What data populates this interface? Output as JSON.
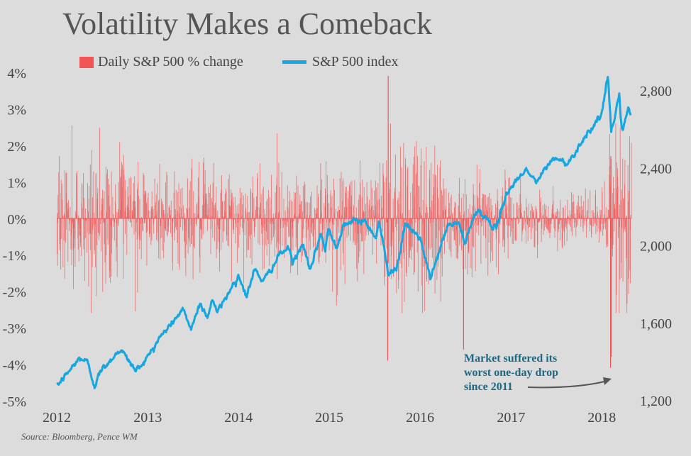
{
  "chart_data": {
    "type": "bar+line",
    "title": "Volatility Makes a Comeback",
    "legend": {
      "placement": "top",
      "items": [
        {
          "label": "Daily S&P 500 % change",
          "marker": "bar",
          "color": "#f25555"
        },
        {
          "label": "S&P 500 index",
          "marker": "line",
          "color": "#16a7e0"
        }
      ]
    },
    "x_axis": {
      "range": [
        "2012-01-01",
        "2018-04-30"
      ],
      "tick_labels": [
        "2012",
        "2013",
        "2014",
        "2015",
        "2016",
        "2017",
        "2018"
      ]
    },
    "y_axis_left": {
      "range": [
        -5,
        4
      ],
      "unit": "%",
      "tick_labels": [
        "4%",
        "3%",
        "2%",
        "1%",
        "0%",
        "-1%",
        "-2%",
        "-3%",
        "-4%",
        "-5%"
      ]
    },
    "y_axis_right": {
      "range": [
        1200,
        2900
      ],
      "tick_labels": [
        "2,800",
        "2,400",
        "2,000",
        "1,600",
        "1,200"
      ]
    },
    "grid": false,
    "series": [
      {
        "name": "S&P 500 index",
        "type": "line",
        "axis": "right",
        "color": "#16a7e0",
        "points": [
          [
            "2012-01-03",
            1277
          ],
          [
            "2012-02-15",
            1345
          ],
          [
            "2012-04-02",
            1419
          ],
          [
            "2012-05-01",
            1405
          ],
          [
            "2012-06-01",
            1278
          ],
          [
            "2012-06-30",
            1362
          ],
          [
            "2012-09-14",
            1466
          ],
          [
            "2012-11-15",
            1353
          ],
          [
            "2012-12-31",
            1426
          ],
          [
            "2013-02-15",
            1520
          ],
          [
            "2013-05-21",
            1669
          ],
          [
            "2013-06-24",
            1573
          ],
          [
            "2013-08-01",
            1706
          ],
          [
            "2013-08-28",
            1630
          ],
          [
            "2013-09-18",
            1725
          ],
          [
            "2013-10-08",
            1655
          ],
          [
            "2013-12-31",
            1848
          ],
          [
            "2014-02-03",
            1741
          ],
          [
            "2014-03-07",
            1878
          ],
          [
            "2014-04-11",
            1815
          ],
          [
            "2014-06-20",
            1962
          ],
          [
            "2014-07-24",
            1988
          ],
          [
            "2014-08-07",
            1909
          ],
          [
            "2014-09-18",
            2011
          ],
          [
            "2014-10-15",
            1862
          ],
          [
            "2014-11-28",
            2067
          ],
          [
            "2014-12-16",
            1972
          ],
          [
            "2014-12-29",
            2090
          ],
          [
            "2015-01-30",
            1995
          ],
          [
            "2015-03-02",
            2117
          ],
          [
            "2015-05-21",
            2130
          ],
          [
            "2015-07-08",
            2046
          ],
          [
            "2015-07-20",
            2128
          ],
          [
            "2015-08-25",
            1867
          ],
          [
            "2015-09-28",
            1881
          ],
          [
            "2015-11-03",
            2109
          ],
          [
            "2015-12-31",
            2044
          ],
          [
            "2016-02-11",
            1829
          ],
          [
            "2016-04-20",
            2102
          ],
          [
            "2016-06-08",
            2119
          ],
          [
            "2016-06-27",
            2000
          ],
          [
            "2016-08-15",
            2190
          ],
          [
            "2016-11-04",
            2085
          ],
          [
            "2016-12-13",
            2271
          ],
          [
            "2017-03-01",
            2396
          ],
          [
            "2017-04-13",
            2328
          ],
          [
            "2017-06-19",
            2453
          ],
          [
            "2017-08-18",
            2425
          ],
          [
            "2017-10-31",
            2575
          ],
          [
            "2017-12-31",
            2674
          ],
          [
            "2018-01-26",
            2873
          ],
          [
            "2018-02-08",
            2581
          ],
          [
            "2018-03-12",
            2783
          ],
          [
            "2018-03-23",
            2588
          ],
          [
            "2018-04-18",
            2708
          ],
          [
            "2018-04-27",
            2670
          ]
        ]
      },
      {
        "name": "Daily S&P 500 % change",
        "type": "bar",
        "axis": "left",
        "color": "#f25555",
        "notable_points": [
          [
            "2015-08-24",
            -3.9
          ],
          [
            "2015-08-26",
            3.9
          ],
          [
            "2016-06-24",
            -3.6
          ],
          [
            "2018-02-05",
            -4.1
          ],
          [
            "2018-02-08",
            -3.8
          ],
          [
            "2018-02-06",
            1.7
          ]
        ],
        "regimes": [
          [
            "2012-01-01",
            "2012-12-31",
            1.0
          ],
          [
            "2013-01-01",
            "2013-12-31",
            0.8
          ],
          [
            "2014-01-01",
            "2014-12-31",
            0.8
          ],
          [
            "2015-01-01",
            "2015-07-31",
            0.9
          ],
          [
            "2015-08-01",
            "2015-12-31",
            1.5
          ],
          [
            "2016-01-01",
            "2016-03-31",
            1.4
          ],
          [
            "2016-04-01",
            "2016-12-31",
            0.8
          ],
          [
            "2017-01-01",
            "2017-12-31",
            0.4
          ],
          [
            "2018-01-01",
            "2018-01-31",
            0.6
          ],
          [
            "2018-02-01",
            "2018-04-30",
            1.6
          ]
        ]
      }
    ],
    "annotations": [
      {
        "text": "Market suffered its worst one-day drop since 2011",
        "lines": [
          "Market suffered its",
          "worst one-day drop",
          "since 2011"
        ],
        "color": "#1b6a85",
        "points_to": "2018-02-05"
      }
    ],
    "source": "Source: Bloomberg, Pence WM"
  },
  "colors": {
    "background": "#dcdcdc",
    "bars": "#f25555",
    "line": "#16a7e0",
    "annotation": "#1b6a85",
    "text": "#444444"
  }
}
